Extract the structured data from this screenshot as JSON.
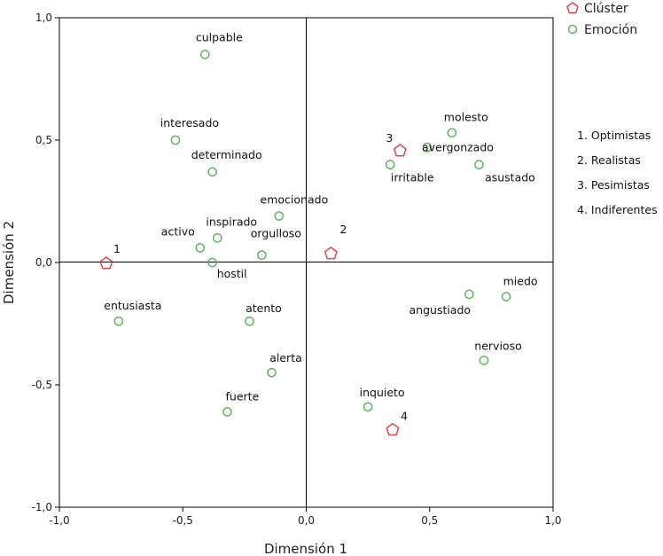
{
  "chart_data": {
    "type": "scatter",
    "xlabel": "Dimensión 1",
    "ylabel": "Dimensión 2",
    "xlim": [
      -1.0,
      1.0
    ],
    "ylim": [
      -1.0,
      1.0
    ],
    "xticks": [
      "-1,0",
      "-0,5",
      "0,0",
      "0,5",
      "1,0"
    ],
    "yticks": [
      "-1,0",
      "-0,5",
      "0,0",
      "0,5",
      "1,0"
    ],
    "grid": false,
    "reference_lines": {
      "x": 0.0,
      "y": 0.0
    },
    "legend_position": "top-right",
    "series": [
      {
        "name": "Clúster",
        "marker": "pentagon",
        "color": "#e0474c",
        "points": [
          {
            "label": "1",
            "x": -0.81,
            "y": 0.0
          },
          {
            "label": "2",
            "x": 0.1,
            "y": 0.04
          },
          {
            "label": "3",
            "x": 0.38,
            "y": 0.46
          },
          {
            "label": "4",
            "x": 0.35,
            "y": -0.68
          }
        ]
      },
      {
        "name": "Emoción",
        "marker": "circle",
        "color": "#5cb85c",
        "points": [
          {
            "label": "culpable",
            "x": -0.41,
            "y": 0.85
          },
          {
            "label": "interesado",
            "x": -0.53,
            "y": 0.5
          },
          {
            "label": "determinado",
            "x": -0.38,
            "y": 0.37
          },
          {
            "label": "emocionado",
            "x": -0.11,
            "y": 0.19
          },
          {
            "label": "inspirado",
            "x": -0.36,
            "y": 0.1
          },
          {
            "label": "activo",
            "x": -0.43,
            "y": 0.06
          },
          {
            "label": "orgulloso",
            "x": -0.18,
            "y": 0.03
          },
          {
            "label": "hostil",
            "x": -0.38,
            "y": 0.0
          },
          {
            "label": "entusiasta",
            "x": -0.76,
            "y": -0.24
          },
          {
            "label": "atento",
            "x": -0.23,
            "y": -0.24
          },
          {
            "label": "alerta",
            "x": -0.14,
            "y": -0.45
          },
          {
            "label": "fuerte",
            "x": -0.32,
            "y": -0.61
          },
          {
            "label": "molesto",
            "x": 0.59,
            "y": 0.53
          },
          {
            "label": "avergonzado",
            "x": 0.49,
            "y": 0.47
          },
          {
            "label": "irritable",
            "x": 0.34,
            "y": 0.4
          },
          {
            "label": "asustado",
            "x": 0.7,
            "y": 0.4
          },
          {
            "label": "angustiado",
            "x": 0.66,
            "y": -0.13
          },
          {
            "label": "miedo",
            "x": 0.81,
            "y": -0.14
          },
          {
            "label": "nervioso",
            "x": 0.72,
            "y": -0.4
          },
          {
            "label": "inquieto",
            "x": 0.25,
            "y": -0.59
          }
        ]
      }
    ],
    "cluster_key": [
      "1. Optimistas",
      "2. Realistas",
      "3. Pesimistas",
      "4. Indiferentes"
    ]
  }
}
